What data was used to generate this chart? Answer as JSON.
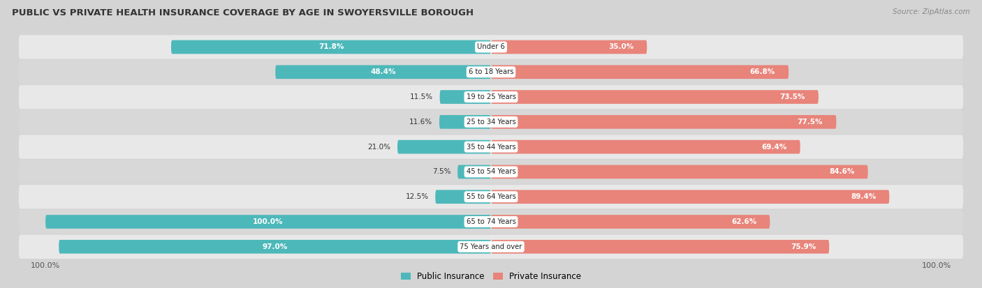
{
  "title": "PUBLIC VS PRIVATE HEALTH INSURANCE COVERAGE BY AGE IN SWOYERSVILLE BOROUGH",
  "source": "Source: ZipAtlas.com",
  "categories": [
    "Under 6",
    "6 to 18 Years",
    "19 to 25 Years",
    "25 to 34 Years",
    "35 to 44 Years",
    "45 to 54 Years",
    "55 to 64 Years",
    "65 to 74 Years",
    "75 Years and over"
  ],
  "public_values": [
    71.8,
    48.4,
    11.5,
    11.6,
    21.0,
    7.5,
    12.5,
    100.0,
    97.0
  ],
  "private_values": [
    35.0,
    66.8,
    73.5,
    77.5,
    69.4,
    84.6,
    89.4,
    62.6,
    75.9
  ],
  "public_color": "#4db8ba",
  "private_color": "#e8847a",
  "row_colors": [
    "#e8e8e8",
    "#d8d8d8"
  ],
  "bar_background": "#ffffff",
  "background_color": "#d4d4d4",
  "max_value": 100.0,
  "legend_public": "Public Insurance",
  "legend_private": "Private Insurance",
  "x_left_label": "100.0%",
  "x_right_label": "100.0%"
}
